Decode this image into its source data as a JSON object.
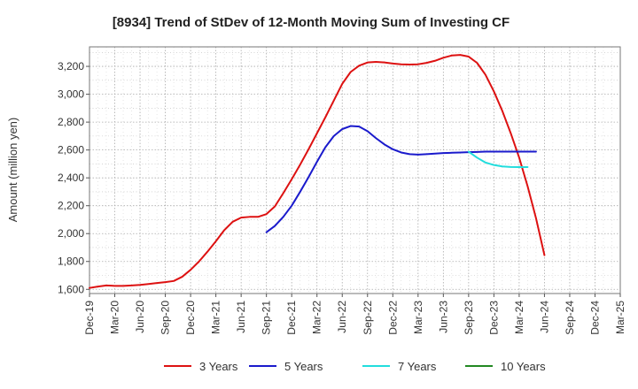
{
  "chart_data": {
    "type": "line",
    "title": "[8934]  Trend of StDev of 12-Month Moving Sum of Investing CF",
    "xlabel": "",
    "ylabel": "Amount (million yen)",
    "ylim": [
      1570,
      3340
    ],
    "yticks": [
      1600,
      1800,
      2000,
      2200,
      2400,
      2600,
      2800,
      3000,
      3200
    ],
    "ytick_labels": [
      "1,600",
      "1,800",
      "2,000",
      "2,200",
      "2,400",
      "2,600",
      "2,800",
      "3,000",
      "3,200"
    ],
    "x_start": "Dec-19",
    "xtick_labels": [
      "Dec-19",
      "Mar-20",
      "Jun-20",
      "Sep-20",
      "Dec-20",
      "Mar-21",
      "Jun-21",
      "Sep-21",
      "Dec-21",
      "Mar-22",
      "Jun-22",
      "Sep-22",
      "Dec-22",
      "Mar-23",
      "Jun-23",
      "Sep-23",
      "Dec-23",
      "Mar-24",
      "Jun-24",
      "Sep-24",
      "Dec-24",
      "Mar-25"
    ],
    "grid": true,
    "legend_position": "bottom",
    "series": [
      {
        "name": "3 Years",
        "color": "#dd1111",
        "start": "Dec-19",
        "values": [
          1610,
          1620,
          1628,
          1625,
          1625,
          1628,
          1632,
          1638,
          1645,
          1652,
          1660,
          1690,
          1740,
          1800,
          1870,
          1945,
          2025,
          2085,
          2115,
          2120,
          2120,
          2140,
          2195,
          2290,
          2390,
          2495,
          2605,
          2720,
          2835,
          2955,
          3075,
          3160,
          3205,
          3228,
          3232,
          3228,
          3220,
          3215,
          3213,
          3215,
          3225,
          3240,
          3262,
          3278,
          3282,
          3270,
          3225,
          3140,
          3020,
          2880,
          2720,
          2545,
          2340,
          2110,
          1845
        ]
      },
      {
        "name": "5 Years",
        "color": "#1a1acc",
        "start": "Sep-21",
        "values": [
          2010,
          2055,
          2120,
          2200,
          2300,
          2405,
          2515,
          2620,
          2700,
          2750,
          2772,
          2768,
          2735,
          2685,
          2640,
          2605,
          2582,
          2570,
          2567,
          2570,
          2574,
          2578,
          2580,
          2582,
          2584,
          2586,
          2588,
          2588,
          2588,
          2588,
          2588,
          2588,
          2588
        ]
      },
      {
        "name": "7 Years",
        "color": "#22dddd",
        "start": "Sep-23",
        "values": [
          2588,
          2545,
          2510,
          2492,
          2482,
          2478,
          2477,
          2477
        ]
      },
      {
        "name": "10 Years",
        "color": "#228822",
        "start": "Sep-23",
        "values": []
      }
    ]
  }
}
